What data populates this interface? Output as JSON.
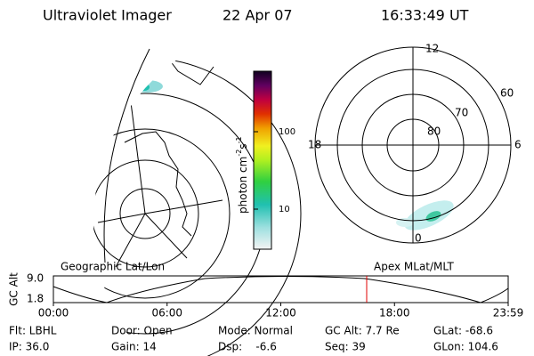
{
  "header": {
    "title": "Ultraviolet Imager",
    "date": "22 Apr 07",
    "time": "16:33:49 UT"
  },
  "colorbar": {
    "label": {
      "text": "photon cm",
      "exp1": "-2",
      "unit2": "s",
      "exp2": "-1"
    },
    "ticks": [
      "100",
      "10"
    ]
  },
  "polar": {
    "mlt_labels": [
      "12",
      "18",
      "6",
      "0"
    ],
    "lat_labels": [
      "60",
      "70",
      "80"
    ]
  },
  "timeline": {
    "left_label": "Geographic Lat/Lon",
    "right_label": "Apex MLat/MLT",
    "y_label": "GC Alt",
    "y_ticks": [
      "9.0",
      "1.8"
    ],
    "x_ticks": [
      "00:00",
      "06:00",
      "12:00",
      "18:00",
      "23:59"
    ]
  },
  "info": {
    "rows": [
      [
        "Flt: LBHL",
        "Door: Open",
        "Mode: Normal",
        "GC Alt: 7.7 Re",
        "GLat: -68.6"
      ],
      [
        "IP: 36.0",
        "Gain: 14",
        "Dsp:    -6.6",
        "Seq: 39",
        "GLon: 104.6"
      ]
    ]
  }
}
